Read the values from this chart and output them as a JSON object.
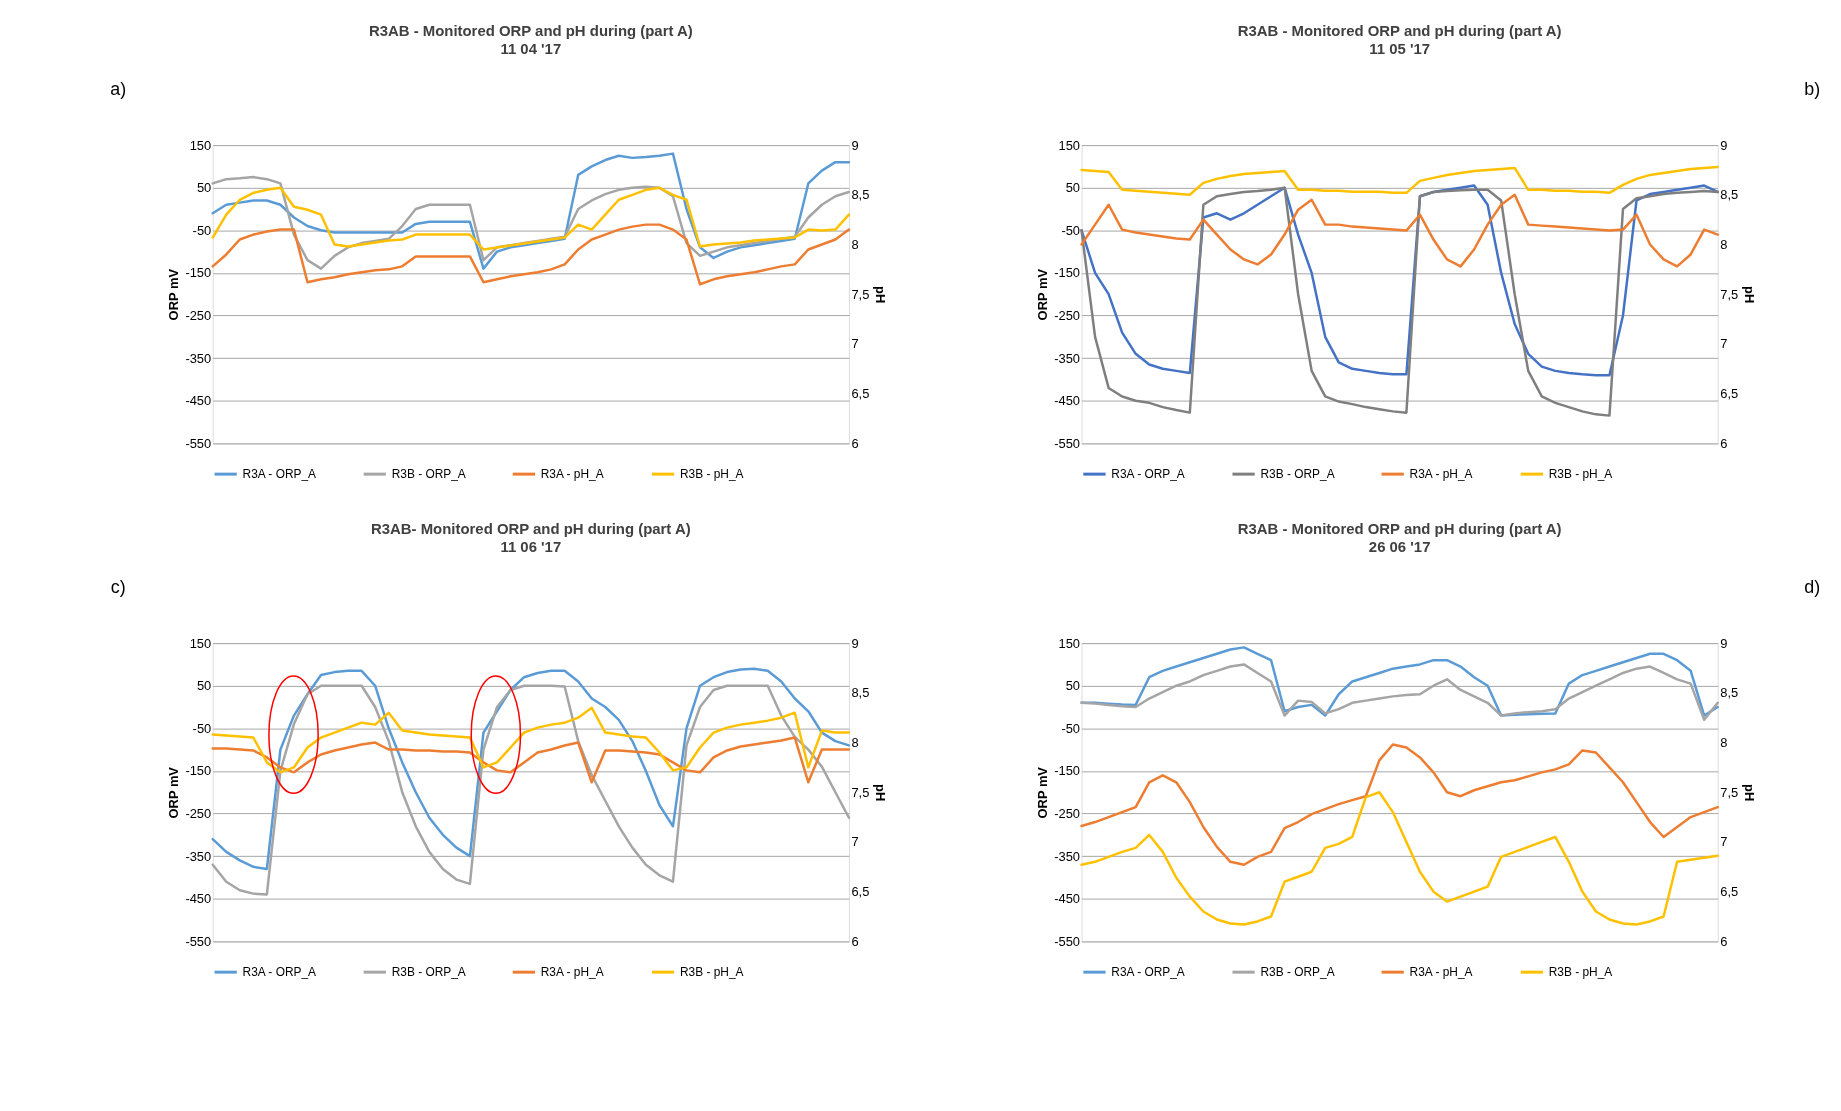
{
  "chart_data": [
    {
      "type": "line",
      "title": "R3AB - Monitored ORP and pH during (part A)",
      "subtitle": "11 04 '17",
      "ylabel": "ORP mV",
      "y2label": "pH",
      "annotations": [
        "a)"
      ],
      "categories": [
        null,
        null,
        null,
        null,
        null,
        null,
        null,
        null,
        null,
        null,
        null,
        null,
        null,
        null,
        null,
        null,
        null,
        null,
        null,
        null,
        null,
        null,
        null,
        null,
        null,
        null,
        null,
        null,
        null,
        null,
        null,
        null,
        null,
        null,
        null,
        null,
        null,
        null,
        null,
        null,
        null,
        null,
        null,
        null,
        null,
        null,
        null,
        null
      ],
      "ylim": [
        -550,
        150
      ],
      "yticks": [
        -550,
        -450,
        -350,
        -250,
        -150,
        -50,
        50,
        150
      ],
      "y2lim": [
        6,
        9
      ],
      "y2ticks": [
        6,
        {
          "value": 6.5,
          "label": "6,5"
        },
        7,
        {
          "value": 7.5,
          "label": "7,5"
        },
        8,
        {
          "value": 8.5,
          "label": "8,5"
        },
        9
      ],
      "grid": "y",
      "legend": "bottom",
      "series": [
        {
          "name": "R3A - ORP_A",
          "color": "#5b9bd5",
          "values": [
            -10,
            10,
            15,
            20,
            20,
            10,
            -20,
            -40,
            -50,
            -55,
            -55,
            -55,
            -55,
            -55,
            -55,
            -35,
            -30,
            -30,
            -30,
            -30,
            -140,
            -100,
            -90,
            -85,
            -80,
            -75,
            -70,
            80,
            100,
            115,
            125,
            120,
            122,
            125,
            130,
            0,
            -90,
            -115,
            -100,
            -90,
            -85,
            -80,
            -75,
            -70,
            60,
            90,
            110,
            110
          ]
        },
        {
          "name": "R3B - ORP_A",
          "color": "#a5a5a5",
          "values": [
            60,
            70,
            72,
            75,
            70,
            60,
            -60,
            -120,
            -140,
            -110,
            -90,
            -80,
            -75,
            -70,
            -40,
            0,
            10,
            10,
            10,
            10,
            -120,
            -90,
            -85,
            -80,
            -75,
            -70,
            -65,
            0,
            20,
            35,
            45,
            50,
            52,
            50,
            30,
            -80,
            -110,
            -100,
            -90,
            -85,
            -80,
            -75,
            -70,
            -65,
            -20,
            10,
            30,
            40
          ]
        },
        {
          "name": "R3A - pH_A",
          "color": "#ed7d31",
          "axis": "y2",
          "values": [
            7.78,
            7.9,
            8.05,
            8.1,
            8.13,
            8.15,
            8.15,
            7.62,
            7.65,
            7.67,
            7.7,
            7.72,
            7.74,
            7.75,
            7.78,
            7.88,
            7.88,
            7.88,
            7.88,
            7.88,
            7.62,
            7.65,
            7.68,
            7.7,
            7.72,
            7.75,
            7.8,
            7.95,
            8.05,
            8.1,
            8.15,
            8.18,
            8.2,
            8.2,
            8.15,
            8.05,
            7.6,
            7.65,
            7.68,
            7.7,
            7.72,
            7.75,
            7.78,
            7.8,
            7.95,
            8.0,
            8.05,
            8.15
          ]
        },
        {
          "name": "R3B - pH_A",
          "color": "#ffc000",
          "axis": "y2",
          "values": [
            8.07,
            8.3,
            8.45,
            8.52,
            8.55,
            8.57,
            8.38,
            8.35,
            8.3,
            8.0,
            7.98,
            8.0,
            8.02,
            8.04,
            8.05,
            8.1,
            8.1,
            8.1,
            8.1,
            8.1,
            7.95,
            7.97,
            7.99,
            8.01,
            8.03,
            8.05,
            8.07,
            8.2,
            8.15,
            8.3,
            8.45,
            8.5,
            8.55,
            8.57,
            8.5,
            8.45,
            7.98,
            8.0,
            8.01,
            8.02,
            8.04,
            8.05,
            8.06,
            8.07,
            8.15,
            8.14,
            8.15,
            8.3
          ]
        }
      ]
    },
    {
      "type": "line",
      "title": "R3AB - Monitored ORP and pH during (part A)",
      "subtitle": "11 05 '17",
      "ylabel": "ORP mV",
      "y2label": "pH",
      "annotations": [
        "b)"
      ],
      "categories": [
        null,
        null,
        null,
        null,
        null,
        null,
        null,
        null,
        null,
        null,
        null,
        null,
        null,
        null,
        null,
        null,
        null,
        null,
        null,
        null,
        null,
        null,
        null,
        null,
        null,
        null,
        null,
        null,
        null,
        null,
        null,
        null,
        null,
        null,
        null,
        null,
        null,
        null,
        null,
        null,
        null,
        null,
        null,
        null,
        null,
        null,
        null,
        null
      ],
      "ylim": [
        -550,
        150
      ],
      "yticks": [
        -550,
        -450,
        -350,
        -250,
        -150,
        -50,
        50,
        150
      ],
      "y2lim": [
        6,
        9
      ],
      "y2ticks": [
        6,
        {
          "value": 6.5,
          "label": "6,5"
        },
        7,
        {
          "value": 7.5,
          "label": "7,5"
        },
        8,
        {
          "value": 8.5,
          "label": "8,5"
        },
        9
      ],
      "grid": "y",
      "legend": "bottom",
      "series": [
        {
          "name": "R3A - ORP_A",
          "color": "#4472c4",
          "values": [
            -50,
            -150,
            -200,
            -290,
            -340,
            -365,
            -375,
            -380,
            -385,
            -20,
            -10,
            -25,
            -10,
            10,
            30,
            50,
            -60,
            -150,
            -300,
            -360,
            -375,
            -380,
            -385,
            -388,
            -388,
            30,
            40,
            45,
            50,
            55,
            10,
            -150,
            -270,
            -340,
            -370,
            -380,
            -385,
            -388,
            -390,
            -390,
            -250,
            20,
            35,
            40,
            45,
            50,
            55,
            40
          ]
        },
        {
          "name": "R3B - ORP_A",
          "color": "#7f7f7f",
          "values": [
            -50,
            -300,
            -420,
            -440,
            -450,
            -455,
            -465,
            -472,
            -478,
            10,
            30,
            35,
            40,
            42,
            45,
            50,
            -200,
            -380,
            -440,
            -452,
            -458,
            -465,
            -470,
            -475,
            -478,
            30,
            40,
            42,
            44,
            45,
            45,
            20,
            -200,
            -380,
            -440,
            -455,
            -465,
            -475,
            -482,
            -485,
            0,
            25,
            30,
            35,
            38,
            40,
            42,
            40
          ]
        },
        {
          "name": "R3A - pH_A",
          "color": "#ed7d31",
          "axis": "y2",
          "values": [
            8.0,
            8.2,
            8.4,
            8.15,
            8.12,
            8.1,
            8.08,
            8.06,
            8.05,
            8.25,
            8.1,
            7.95,
            7.85,
            7.8,
            7.9,
            8.1,
            8.35,
            8.45,
            8.2,
            8.2,
            8.18,
            8.17,
            8.16,
            8.15,
            8.14,
            8.3,
            8.05,
            7.85,
            7.78,
            7.95,
            8.2,
            8.4,
            8.5,
            8.2,
            8.19,
            8.18,
            8.17,
            8.16,
            8.15,
            8.14,
            8.15,
            8.3,
            8.0,
            7.85,
            7.78,
            7.9,
            8.15,
            8.1
          ]
        },
        {
          "name": "R3B - pH_A",
          "color": "#ffc000",
          "axis": "y2",
          "values": [
            8.75,
            8.74,
            8.73,
            8.55,
            8.54,
            8.53,
            8.52,
            8.51,
            8.5,
            8.62,
            8.66,
            8.69,
            8.71,
            8.72,
            8.73,
            8.74,
            8.55,
            8.55,
            8.54,
            8.54,
            8.53,
            8.53,
            8.53,
            8.52,
            8.52,
            8.64,
            8.67,
            8.7,
            8.72,
            8.74,
            8.75,
            8.76,
            8.77,
            8.55,
            8.55,
            8.54,
            8.54,
            8.53,
            8.53,
            8.52,
            8.6,
            8.66,
            8.7,
            8.72,
            8.74,
            8.76,
            8.77,
            8.78
          ]
        }
      ]
    },
    {
      "type": "line",
      "title": "R3AB- Monitored ORP and pH during (part A)",
      "subtitle": "11 06 '17",
      "ylabel": "ORP mV",
      "y2label": "pH",
      "annotations": [
        "c)"
      ],
      "categories": [
        null,
        null,
        null,
        null,
        null,
        null,
        null,
        null,
        null,
        null,
        null,
        null,
        null,
        null,
        null,
        null,
        null,
        null,
        null,
        null,
        null,
        null,
        null,
        null,
        null,
        null,
        null,
        null,
        null,
        null,
        null,
        null,
        null,
        null,
        null,
        null,
        null,
        null,
        null,
        null,
        null,
        null,
        null,
        null,
        null,
        null,
        null,
        null
      ],
      "ylim": [
        -550,
        150
      ],
      "yticks": [
        -550,
        -450,
        -350,
        -250,
        -150,
        -50,
        50,
        150
      ],
      "y2lim": [
        6,
        9
      ],
      "y2ticks": [
        6,
        {
          "value": 6.5,
          "label": "6,5"
        },
        7,
        {
          "value": 7.5,
          "label": "7,5"
        },
        8,
        {
          "value": 8.5,
          "label": "8,5"
        },
        9
      ],
      "grid": "y",
      "legend": "bottom",
      "series": [
        {
          "name": "R3A - ORP_A",
          "color": "#5b9bd5",
          "values": [
            -310,
            -340,
            -360,
            -375,
            -380,
            -100,
            -20,
            30,
            75,
            82,
            85,
            85,
            50,
            -50,
            -130,
            -200,
            -260,
            -300,
            -330,
            -350,
            -60,
            -10,
            40,
            70,
            80,
            85,
            85,
            60,
            20,
            0,
            -30,
            -80,
            -150,
            -230,
            -280,
            -50,
            50,
            70,
            82,
            88,
            90,
            85,
            60,
            20,
            -10,
            -60,
            -80,
            -90
          ]
        },
        {
          "name": "R3B - ORP_A",
          "color": "#a5a5a5",
          "values": [
            -370,
            -410,
            -430,
            -438,
            -440,
            -150,
            -40,
            30,
            50,
            50,
            50,
            50,
            0,
            -80,
            -200,
            -280,
            -340,
            -380,
            -405,
            -415,
            -100,
            0,
            40,
            50,
            50,
            50,
            48,
            -80,
            -160,
            -220,
            -280,
            -330,
            -370,
            -395,
            -410,
            -90,
            0,
            40,
            50,
            50,
            50,
            50,
            -20,
            -70,
            -100,
            -140,
            -200,
            -260
          ]
        },
        {
          "name": "R3A - pH_A",
          "color": "#ed7d31",
          "axis": "y2",
          "values": [
            7.94,
            7.94,
            7.93,
            7.92,
            7.85,
            7.75,
            7.7,
            7.8,
            7.88,
            7.92,
            7.95,
            7.98,
            8.0,
            7.93,
            7.93,
            7.92,
            7.92,
            7.91,
            7.91,
            7.9,
            7.8,
            7.72,
            7.7,
            7.8,
            7.9,
            7.93,
            7.97,
            8.0,
            7.6,
            7.92,
            7.92,
            7.91,
            7.9,
            7.88,
            7.8,
            7.72,
            7.7,
            7.85,
            7.92,
            7.96,
            7.98,
            8.0,
            8.02,
            8.05,
            7.6,
            7.93,
            7.93,
            7.93
          ]
        },
        {
          "name": "R3B - pH_A",
          "color": "#ffc000",
          "axis": "y2",
          "values": [
            8.08,
            8.07,
            8.06,
            8.05,
            7.8,
            7.7,
            7.75,
            7.95,
            8.05,
            8.1,
            8.15,
            8.2,
            8.18,
            8.3,
            8.12,
            8.1,
            8.08,
            8.07,
            8.06,
            8.05,
            7.75,
            7.8,
            7.95,
            8.1,
            8.15,
            8.18,
            8.2,
            8.25,
            8.35,
            8.1,
            8.08,
            8.06,
            8.05,
            7.9,
            7.72,
            7.75,
            7.95,
            8.1,
            8.15,
            8.18,
            8.2,
            8.22,
            8.25,
            8.3,
            7.75,
            8.12,
            8.1,
            8.1
          ]
        }
      ]
    },
    {
      "type": "line",
      "title": "R3AB - Monitored ORP and pH during (part A)",
      "subtitle": "26 06 '17",
      "ylabel": "ORP mV",
      "y2label": "pH",
      "annotations": [
        "d)"
      ],
      "categories": [
        null,
        null,
        null,
        null,
        null,
        null,
        null,
        null,
        null,
        null,
        null,
        null,
        null,
        null,
        null,
        null,
        null,
        null,
        null,
        null,
        null,
        null,
        null,
        null,
        null,
        null,
        null,
        null,
        null,
        null,
        null,
        null,
        null,
        null,
        null,
        null,
        null,
        null,
        null,
        null,
        null,
        null,
        null,
        null,
        null,
        null,
        null,
        null
      ],
      "ylim": [
        -550,
        150
      ],
      "yticks": [
        -550,
        -450,
        -350,
        -250,
        -150,
        -50,
        50,
        150
      ],
      "y2lim": [
        6,
        9
      ],
      "y2ticks": [
        6,
        {
          "value": 6.5,
          "label": "6,5"
        },
        7,
        {
          "value": 7.5,
          "label": "7,5"
        },
        8,
        {
          "value": 8.5,
          "label": "8,5"
        },
        9
      ],
      "grid": "y",
      "legend": "bottom",
      "series": [
        {
          "name": "R3A - ORP_A",
          "color": "#5b9bd5",
          "values": [
            10,
            10,
            8,
            6,
            5,
            70,
            85,
            95,
            105,
            115,
            125,
            135,
            140,
            125,
            110,
            -10,
            0,
            5,
            -20,
            30,
            60,
            70,
            80,
            90,
            95,
            100,
            110,
            110,
            95,
            70,
            50,
            -20,
            -18,
            -17,
            -16,
            -15,
            55,
            75,
            85,
            95,
            105,
            115,
            125,
            125,
            110,
            85,
            -20,
            0
          ]
        },
        {
          "name": "R3B - ORP_A",
          "color": "#a5a5a5",
          "values": [
            10,
            8,
            5,
            2,
            0,
            20,
            35,
            50,
            60,
            75,
            85,
            95,
            100,
            80,
            60,
            -20,
            15,
            12,
            -15,
            -5,
            10,
            15,
            20,
            25,
            28,
            30,
            50,
            65,
            40,
            25,
            10,
            -20,
            -15,
            -12,
            -10,
            -5,
            20,
            35,
            50,
            65,
            80,
            90,
            95,
            80,
            65,
            55,
            -30,
            10
          ]
        },
        {
          "name": "R3A - pH_A",
          "color": "#ed7d31",
          "axis": "y2",
          "values": [
            7.16,
            7.2,
            7.25,
            7.3,
            7.35,
            7.6,
            7.67,
            7.6,
            7.4,
            7.15,
            6.95,
            6.8,
            6.77,
            6.85,
            6.9,
            7.14,
            7.2,
            7.28,
            7.33,
            7.38,
            7.42,
            7.46,
            7.82,
            7.98,
            7.95,
            7.85,
            7.7,
            7.5,
            7.46,
            7.52,
            7.56,
            7.6,
            7.62,
            7.66,
            7.7,
            7.73,
            7.78,
            7.92,
            7.9,
            7.75,
            7.6,
            7.4,
            7.2,
            7.05,
            7.15,
            7.25,
            7.3,
            7.35
          ]
        },
        {
          "name": "R3B - pH_A",
          "color": "#ffc000",
          "axis": "y2",
          "values": [
            6.77,
            6.8,
            6.85,
            6.9,
            6.94,
            7.07,
            6.9,
            6.64,
            6.45,
            6.3,
            6.22,
            6.18,
            6.17,
            6.2,
            6.25,
            6.6,
            6.65,
            6.7,
            6.94,
            6.98,
            7.05,
            7.45,
            7.5,
            7.3,
            7.0,
            6.7,
            6.5,
            6.4,
            6.45,
            6.5,
            6.55,
            6.85,
            6.9,
            6.95,
            7.0,
            7.05,
            6.8,
            6.5,
            6.3,
            6.22,
            6.18,
            6.17,
            6.2,
            6.25,
            6.8,
            6.82,
            6.84,
            6.86
          ]
        }
      ]
    }
  ]
}
